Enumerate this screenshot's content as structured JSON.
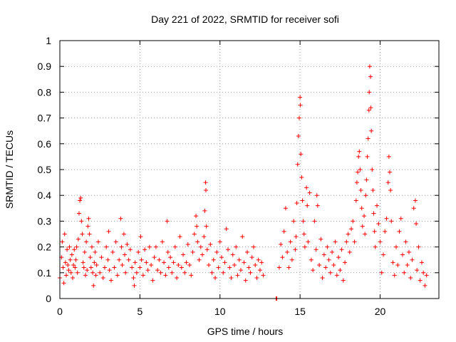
{
  "chart_data": {
    "type": "scatter",
    "title": "Day 221 of 2022, SRMTID for receiver sofi",
    "xlabel": "GPS time / hours",
    "ylabel": "SRMTID / TECUs",
    "xlim": [
      0,
      23.67
    ],
    "ylim": [
      0,
      1
    ],
    "xticks": [
      0,
      5,
      10,
      15,
      20
    ],
    "xtick_labels": [
      "0",
      "5",
      "10",
      "15",
      "20"
    ],
    "yticks": [
      0,
      0.1,
      0.2,
      0.3,
      0.4,
      0.5,
      0.6,
      0.7,
      0.8,
      0.9,
      1
    ],
    "ytick_labels": [
      "0",
      "0.1",
      "0.2",
      "0.3",
      "0.4",
      "0.5",
      "0.6",
      "0.7",
      "0.8",
      "0.9",
      "1"
    ],
    "grid": true,
    "marker": "+",
    "color": "#ff0000",
    "series": [
      {
        "name": "SRMTID",
        "points": [
          [
            0.0,
            0.08
          ],
          [
            0.1,
            0.16
          ],
          [
            0.15,
            0.22
          ],
          [
            0.2,
            0.12
          ],
          [
            0.25,
            0.06
          ],
          [
            0.3,
            0.25
          ],
          [
            0.35,
            0.14
          ],
          [
            0.4,
            0.09
          ],
          [
            0.45,
            0.19
          ],
          [
            0.5,
            0.13
          ],
          [
            0.55,
            0.11
          ],
          [
            0.6,
            0.2
          ],
          [
            0.65,
            0.15
          ],
          [
            0.7,
            0.1
          ],
          [
            0.75,
            0.17
          ],
          [
            0.8,
            0.08
          ],
          [
            0.85,
            0.13
          ],
          [
            0.9,
            0.19
          ],
          [
            0.95,
            0.12
          ],
          [
            1.0,
            0.15
          ],
          [
            1.05,
            0.2
          ],
          [
            1.1,
            0.1
          ],
          [
            1.15,
            0.23
          ],
          [
            1.2,
            0.33
          ],
          [
            1.25,
            0.38
          ],
          [
            1.3,
            0.39
          ],
          [
            1.35,
            0.3
          ],
          [
            1.4,
            0.25
          ],
          [
            1.45,
            0.14
          ],
          [
            1.5,
            0.12
          ],
          [
            1.55,
            0.18
          ],
          [
            1.6,
            0.09
          ],
          [
            1.65,
            0.22
          ],
          [
            1.7,
            0.11
          ],
          [
            1.75,
            0.28
          ],
          [
            1.8,
            0.31
          ],
          [
            1.85,
            0.25
          ],
          [
            1.9,
            0.16
          ],
          [
            1.95,
            0.12
          ],
          [
            2.0,
            0.2
          ],
          [
            2.05,
            0.1
          ],
          [
            2.1,
            0.05
          ],
          [
            2.15,
            0.14
          ],
          [
            2.2,
            0.18
          ],
          [
            2.25,
            0.09
          ],
          [
            2.3,
            0.13
          ],
          [
            2.4,
            0.22
          ],
          [
            2.5,
            0.1
          ],
          [
            2.6,
            0.16
          ],
          [
            2.7,
            0.08
          ],
          [
            2.8,
            0.12
          ],
          [
            2.9,
            0.2
          ],
          [
            3.0,
            0.15
          ],
          [
            3.05,
            0.26
          ],
          [
            3.1,
            0.11
          ],
          [
            3.2,
            0.07
          ],
          [
            3.3,
            0.18
          ],
          [
            3.4,
            0.12
          ],
          [
            3.5,
            0.22
          ],
          [
            3.6,
            0.09
          ],
          [
            3.7,
            0.15
          ],
          [
            3.8,
            0.31
          ],
          [
            3.85,
            0.2
          ],
          [
            3.9,
            0.13
          ],
          [
            4.0,
            0.25
          ],
          [
            4.05,
            0.17
          ],
          [
            4.1,
            0.1
          ],
          [
            4.2,
            0.21
          ],
          [
            4.3,
            0.15
          ],
          [
            4.4,
            0.19
          ],
          [
            4.5,
            0.12
          ],
          [
            4.6,
            0.08
          ],
          [
            4.65,
            0.05
          ],
          [
            4.7,
            0.14
          ],
          [
            4.8,
            0.1
          ],
          [
            4.9,
            0.18
          ],
          [
            5.0,
            0.12
          ],
          [
            5.05,
            0.24
          ],
          [
            5.1,
            0.15
          ],
          [
            5.2,
            0.09
          ],
          [
            5.3,
            0.19
          ],
          [
            5.4,
            0.14
          ],
          [
            5.5,
            0.11
          ],
          [
            5.6,
            0.2
          ],
          [
            5.7,
            0.13
          ],
          [
            5.8,
            0.07
          ],
          [
            5.9,
            0.16
          ],
          [
            6.0,
            0.2
          ],
          [
            6.1,
            0.11
          ],
          [
            6.2,
            0.15
          ],
          [
            6.3,
            0.1
          ],
          [
            6.4,
            0.22
          ],
          [
            6.5,
            0.14
          ],
          [
            6.6,
            0.09
          ],
          [
            6.7,
            0.3
          ],
          [
            6.75,
            0.18
          ],
          [
            6.8,
            0.12
          ],
          [
            6.9,
            0.16
          ],
          [
            7.0,
            0.1
          ],
          [
            7.1,
            0.14
          ],
          [
            7.2,
            0.2
          ],
          [
            7.3,
            0.08
          ],
          [
            7.4,
            0.13
          ],
          [
            7.5,
            0.24
          ],
          [
            7.6,
            0.12
          ],
          [
            7.7,
            0.17
          ],
          [
            7.8,
            0.1
          ],
          [
            7.9,
            0.14
          ],
          [
            8.0,
            0.21
          ],
          [
            8.1,
            0.13
          ],
          [
            8.2,
            0.09
          ],
          [
            8.3,
            0.18
          ],
          [
            8.4,
            0.25
          ],
          [
            8.5,
            0.32
          ],
          [
            8.55,
            0.28
          ],
          [
            8.6,
            0.22
          ],
          [
            8.7,
            0.15
          ],
          [
            8.8,
            0.2
          ],
          [
            8.9,
            0.17
          ],
          [
            9.0,
            0.24
          ],
          [
            9.05,
            0.34
          ],
          [
            9.1,
            0.45
          ],
          [
            9.12,
            0.42
          ],
          [
            9.15,
            0.28
          ],
          [
            9.2,
            0.19
          ],
          [
            9.3,
            0.13
          ],
          [
            9.4,
            0.21
          ],
          [
            9.5,
            0.1
          ],
          [
            9.6,
            0.15
          ],
          [
            9.7,
            0.08
          ],
          [
            9.8,
            0.18
          ],
          [
            9.9,
            0.12
          ],
          [
            10.0,
            0.22
          ],
          [
            10.1,
            0.16
          ],
          [
            10.2,
            0.1
          ],
          [
            10.3,
            0.14
          ],
          [
            10.4,
            0.27
          ],
          [
            10.5,
            0.19
          ],
          [
            10.6,
            0.12
          ],
          [
            10.7,
            0.08
          ],
          [
            10.8,
            0.17
          ],
          [
            10.9,
            0.13
          ],
          [
            11.0,
            0.2
          ],
          [
            11.1,
            0.09
          ],
          [
            11.2,
            0.15
          ],
          [
            11.3,
            0.11
          ],
          [
            11.4,
            0.24
          ],
          [
            11.5,
            0.14
          ],
          [
            11.6,
            0.07
          ],
          [
            11.7,
            0.18
          ],
          [
            11.8,
            0.12
          ],
          [
            11.9,
            0.1
          ],
          [
            12.0,
            0.16
          ],
          [
            12.1,
            0.2
          ],
          [
            12.2,
            0.13
          ],
          [
            12.3,
            0.08
          ],
          [
            12.4,
            0.15
          ],
          [
            12.5,
            0.11
          ],
          [
            12.6,
            0.14
          ],
          [
            12.7,
            0.09
          ],
          [
            13.5,
            0.0
          ],
          [
            13.55,
            0.0
          ],
          [
            13.7,
            0.12
          ],
          [
            13.8,
            0.21
          ],
          [
            13.9,
            0.16
          ],
          [
            14.0,
            0.26
          ],
          [
            14.1,
            0.35
          ],
          [
            14.2,
            0.18
          ],
          [
            14.3,
            0.12
          ],
          [
            14.4,
            0.22
          ],
          [
            14.5,
            0.15
          ],
          [
            14.6,
            0.3
          ],
          [
            14.7,
            0.19
          ],
          [
            14.75,
            0.24
          ],
          [
            14.8,
            0.37
          ],
          [
            14.85,
            0.52
          ],
          [
            14.9,
            0.63
          ],
          [
            14.95,
            0.7
          ],
          [
            15.0,
            0.78
          ],
          [
            15.02,
            0.75
          ],
          [
            15.05,
            0.56
          ],
          [
            15.1,
            0.47
          ],
          [
            15.15,
            0.38
          ],
          [
            15.2,
            0.3
          ],
          [
            15.25,
            0.25
          ],
          [
            15.3,
            0.2
          ],
          [
            15.4,
            0.43
          ],
          [
            15.45,
            0.36
          ],
          [
            15.5,
            0.22
          ],
          [
            15.6,
            0.41
          ],
          [
            15.7,
            0.15
          ],
          [
            15.8,
            0.11
          ],
          [
            15.9,
            0.3
          ],
          [
            16.0,
            0.19
          ],
          [
            16.05,
            0.4
          ],
          [
            16.1,
            0.36
          ],
          [
            16.2,
            0.13
          ],
          [
            16.3,
            0.23
          ],
          [
            16.4,
            0.08
          ],
          [
            16.5,
            0.17
          ],
          [
            16.6,
            0.12
          ],
          [
            16.7,
            0.2
          ],
          [
            16.8,
            0.15
          ],
          [
            16.9,
            0.1
          ],
          [
            17.0,
            0.18
          ],
          [
            17.1,
            0.13
          ],
          [
            17.2,
            0.22
          ],
          [
            17.3,
            0.09
          ],
          [
            17.4,
            0.16
          ],
          [
            17.5,
            0.11
          ],
          [
            17.6,
            0.19
          ],
          [
            17.7,
            0.07
          ],
          [
            17.8,
            0.14
          ],
          [
            17.9,
            0.22
          ],
          [
            18.0,
            0.25
          ],
          [
            18.1,
            0.18
          ],
          [
            18.2,
            0.27
          ],
          [
            18.3,
            0.3
          ],
          [
            18.4,
            0.22
          ],
          [
            18.5,
            0.38
          ],
          [
            18.55,
            0.45
          ],
          [
            18.6,
            0.49
          ],
          [
            18.65,
            0.55
          ],
          [
            18.7,
            0.57
          ],
          [
            18.75,
            0.5
          ],
          [
            18.8,
            0.42
          ],
          [
            18.85,
            0.35
          ],
          [
            18.9,
            0.28
          ],
          [
            19.0,
            0.32
          ],
          [
            19.05,
            0.25
          ],
          [
            19.1,
            0.4
          ],
          [
            19.15,
            0.46
          ],
          [
            19.2,
            0.55
          ],
          [
            19.25,
            0.62
          ],
          [
            19.3,
            0.73
          ],
          [
            19.32,
            0.8
          ],
          [
            19.35,
            0.9
          ],
          [
            19.4,
            0.86
          ],
          [
            19.42,
            0.74
          ],
          [
            19.45,
            0.65
          ],
          [
            19.5,
            0.5
          ],
          [
            19.55,
            0.42
          ],
          [
            19.6,
            0.33
          ],
          [
            19.65,
            0.26
          ],
          [
            19.7,
            0.2
          ],
          [
            19.8,
            0.36
          ],
          [
            19.9,
            0.29
          ],
          [
            20.0,
            0.22
          ],
          [
            20.1,
            0.1
          ],
          [
            20.2,
            0.17
          ],
          [
            20.3,
            0.26
          ],
          [
            20.4,
            0.31
          ],
          [
            20.5,
            0.45
          ],
          [
            20.55,
            0.55
          ],
          [
            20.6,
            0.49
          ],
          [
            20.65,
            0.42
          ],
          [
            20.7,
            0.3
          ],
          [
            20.8,
            0.14
          ],
          [
            20.9,
            0.09
          ],
          [
            21.0,
            0.2
          ],
          [
            21.1,
            0.13
          ],
          [
            21.2,
            0.26
          ],
          [
            21.3,
            0.31
          ],
          [
            21.4,
            0.17
          ],
          [
            21.5,
            0.1
          ],
          [
            21.6,
            0.22
          ],
          [
            21.7,
            0.13
          ],
          [
            21.8,
            0.18
          ],
          [
            21.9,
            0.08
          ],
          [
            22.0,
            0.15
          ],
          [
            22.1,
            0.35
          ],
          [
            22.2,
            0.38
          ],
          [
            22.25,
            0.29
          ],
          [
            22.3,
            0.11
          ],
          [
            22.4,
            0.2
          ],
          [
            22.5,
            0.07
          ],
          [
            22.6,
            0.14
          ],
          [
            22.7,
            0.1
          ],
          [
            22.8,
            0.05
          ],
          [
            22.9,
            0.09
          ]
        ]
      }
    ]
  }
}
